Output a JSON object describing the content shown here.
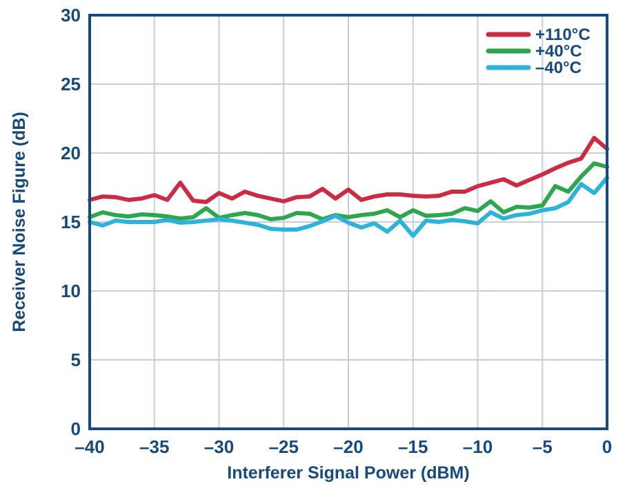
{
  "colors": {
    "text_navy": "#174a7b",
    "grid": "#c5cfda",
    "background": "#ffffff",
    "series_red": "#cb2b43",
    "series_green": "#2ea64e",
    "series_cyan": "#2eb2da"
  },
  "chart_data": {
    "type": "line",
    "title": "",
    "xlabel": "Interferer Signal Power (dBM)",
    "ylabel": "Receiver Noise Figure (dB)",
    "xlim": [
      -40,
      0
    ],
    "ylim": [
      0,
      30
    ],
    "grid": true,
    "legend_position": "top-right-inside",
    "x_ticks": [
      -40,
      -35,
      -30,
      -25,
      -20,
      -15,
      -10,
      -5,
      0
    ],
    "x_tick_labels": [
      "–40",
      "–35",
      "–30",
      "–25",
      "–20",
      "–15",
      "–10",
      "–5",
      "0"
    ],
    "y_ticks": [
      0,
      5,
      10,
      15,
      20,
      25,
      30
    ],
    "y_tick_labels": [
      "0",
      "5",
      "10",
      "15",
      "20",
      "25",
      "30"
    ],
    "x": [
      -40,
      -39,
      -38,
      -37,
      -36,
      -35,
      -34,
      -33,
      -32,
      -31,
      -30,
      -29,
      -28,
      -27,
      -26,
      -25,
      -24,
      -23,
      -22,
      -21,
      -20,
      -19,
      -18,
      -17,
      -16,
      -15,
      -14,
      -13,
      -12,
      -11,
      -10,
      -9,
      -8,
      -7,
      -6,
      -5,
      -4,
      -3,
      -2,
      -1,
      0
    ],
    "series": [
      {
        "id": "plus-110c",
        "name": "+110°C",
        "color": "#cb2b43",
        "values": [
          16.6,
          16.85,
          16.8,
          16.6,
          16.7,
          16.95,
          16.6,
          17.85,
          16.55,
          16.45,
          17.1,
          16.7,
          17.2,
          16.9,
          16.7,
          16.5,
          16.8,
          16.85,
          17.4,
          16.7,
          17.35,
          16.6,
          16.85,
          17.0,
          17.0,
          16.9,
          16.85,
          16.9,
          17.2,
          17.2,
          17.6,
          17.85,
          18.1,
          17.65,
          18.05,
          18.45,
          18.9,
          19.3,
          19.6,
          21.1,
          20.3
        ]
      },
      {
        "id": "plus-40c",
        "name": "+40°C",
        "color": "#2ea64e",
        "values": [
          15.35,
          15.7,
          15.5,
          15.4,
          15.55,
          15.5,
          15.4,
          15.25,
          15.35,
          16.0,
          15.3,
          15.5,
          15.65,
          15.5,
          15.2,
          15.3,
          15.65,
          15.6,
          15.2,
          15.5,
          15.35,
          15.5,
          15.6,
          15.85,
          15.35,
          15.85,
          15.45,
          15.5,
          15.6,
          16.0,
          15.8,
          16.5,
          15.7,
          16.1,
          16.05,
          16.2,
          17.6,
          17.2,
          18.3,
          19.25,
          19.0
        ]
      },
      {
        "id": "minus-40c",
        "name": "–40°C",
        "color": "#2eb2da",
        "values": [
          15.0,
          14.75,
          15.1,
          15.0,
          15.0,
          15.0,
          15.15,
          14.95,
          15.0,
          15.1,
          15.2,
          15.1,
          14.95,
          14.8,
          14.5,
          14.45,
          14.45,
          14.7,
          15.05,
          15.45,
          14.95,
          14.6,
          14.9,
          14.3,
          15.1,
          14.0,
          15.1,
          15.0,
          15.15,
          15.05,
          14.9,
          15.7,
          15.25,
          15.5,
          15.6,
          15.85,
          16.0,
          16.45,
          17.75,
          17.1,
          18.2
        ]
      }
    ]
  }
}
